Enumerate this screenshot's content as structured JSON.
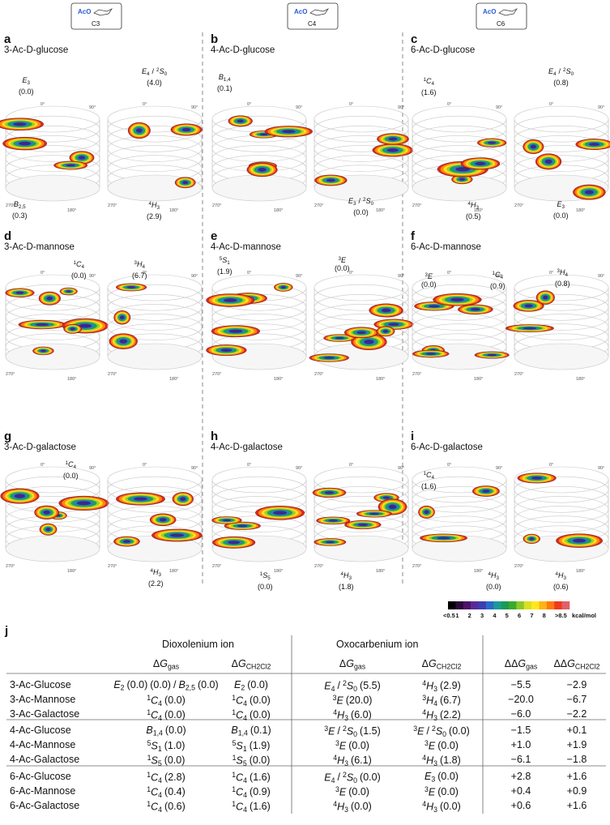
{
  "header": {
    "boxes": [
      {
        "group": "AcO",
        "label": "C3"
      },
      {
        "group": "AcO",
        "label": "C4"
      },
      {
        "group": "AcO",
        "label": "C6"
      }
    ]
  },
  "angles": [
    "0°",
    "90°",
    "180°",
    "270°"
  ],
  "panels": [
    {
      "letter": "a",
      "title": "3-Ac-D-glucose",
      "labels": [
        [
          {
            "c": "E",
            "sub": "3",
            "e": "(0.0)"
          }
        ],
        [
          {
            "c": "B",
            "sub": "2,5",
            "e": "(0.3)"
          }
        ],
        [
          {
            "c": "E",
            "sub": "4",
            "sep": "/"
          },
          {
            "sup": "2",
            "c": "S",
            "sub": "0",
            "e": "(4.0)"
          }
        ],
        [
          {
            "sup": "4",
            "c": "H",
            "sub": "3",
            "e": "(2.9)"
          }
        ]
      ]
    },
    {
      "letter": "b",
      "title": "4-Ac-D-glucose",
      "labels": [
        [
          {
            "c": "B",
            "sub": "1,4",
            "e": "(0.1)"
          }
        ],
        [
          {
            "c": "E",
            "sub": "3",
            "sep": "/"
          },
          {
            "sup": "2",
            "c": "S",
            "sub": "0",
            "e": "(0.0)"
          }
        ]
      ]
    },
    {
      "letter": "c",
      "title": "6-Ac-D-glucose",
      "labels": [
        [
          {
            "sup": "1",
            "c": "C",
            "sub": "4",
            "e": "(1.6)"
          }
        ],
        [
          {
            "c": "E",
            "sub": "4",
            "sep": "/"
          },
          {
            "sup": "2",
            "c": "S",
            "sub": "0",
            "e": "(0.8)"
          }
        ],
        [
          {
            "sup": "4",
            "c": "H",
            "sub": "3",
            "e": "(0.5)"
          }
        ],
        [
          {
            "c": "E",
            "sub": "3",
            "e": "(0.0)"
          }
        ]
      ]
    },
    {
      "letter": "d",
      "title": "3-Ac-D-mannose",
      "labels": [
        [
          {
            "sup": "1",
            "c": "C",
            "sub": "4",
            "e": "(0.0)"
          }
        ],
        [
          {
            "sup": "3",
            "c": "H",
            "sub": "4",
            "e": "(6.7)"
          }
        ]
      ]
    },
    {
      "letter": "e",
      "title": "4-Ac-D-mannose",
      "labels": [
        [
          {
            "sup": "5",
            "c": "S",
            "sub": "1",
            "e": "(1.9)"
          }
        ],
        [
          {
            "sup": "3",
            "c": "E",
            "e": "(0.0)"
          }
        ]
      ]
    },
    {
      "letter": "f",
      "title": "6-Ac-D-mannose",
      "labels": [
        [
          {
            "sup": "3",
            "c": "E",
            "e": "(0.0)"
          }
        ],
        [
          {
            "sup": "1",
            "c": "C",
            "sub": "4",
            "e": "(0.9)"
          }
        ],
        [
          {
            "sup": "3",
            "c": "H",
            "sub": "4",
            "e": "(0.8)"
          }
        ]
      ]
    },
    {
      "letter": "g",
      "title": "3-Ac-D-galactose",
      "labels": [
        [
          {
            "sup": "1",
            "c": "C",
            "sub": "4",
            "e": "(0.0)"
          }
        ],
        [
          {
            "sup": "4",
            "c": "H",
            "sub": "3",
            "e": "(2.2)"
          }
        ]
      ]
    },
    {
      "letter": "h",
      "title": "4-Ac-D-galactose",
      "labels": [
        [
          {
            "sup": "1",
            "c": "S",
            "sub": "5",
            "e": "(0.0)"
          }
        ],
        [
          {
            "sup": "4",
            "c": "H",
            "sub": "3",
            "e": "(1.8)"
          }
        ]
      ]
    },
    {
      "letter": "i",
      "title": "6-Ac-D-galactose",
      "labels": [
        [
          {
            "sup": "1",
            "c": "C",
            "sub": "4",
            "e": "(1.6)"
          }
        ],
        [
          {
            "sup": "4",
            "c": "H",
            "sub": "3",
            "e": "(0.0)"
          }
        ],
        [
          {
            "sup": "4",
            "c": "H",
            "sub": "3",
            "e": "(0.6)"
          }
        ]
      ]
    }
  ],
  "colorbar": {
    "colors": [
      "#000000",
      "#2a0a3a",
      "#4b1466",
      "#5a2a9a",
      "#3b3fb0",
      "#2a6ac8",
      "#1a9a9a",
      "#1a9a55",
      "#3aaa2a",
      "#8ac82a",
      "#d8e020",
      "#ffe81a",
      "#ffb414",
      "#ff7a10",
      "#f03a1a",
      "#e0606a"
    ],
    "labels": [
      "<0.5",
      "1",
      "2",
      "3",
      "4",
      "5",
      "6",
      "7",
      "8",
      ">8.5"
    ],
    "unit": "kcal/mol"
  },
  "table": {
    "letter": "j",
    "groups": [
      "Dioxolenium ion",
      "Oxocarbenium ion"
    ],
    "columns": [
      {
        "pre": "Δ",
        "c": "G",
        "sub": "gas"
      },
      {
        "pre": "Δ",
        "c": "G",
        "sub": "CH2Cl2"
      },
      {
        "pre": "Δ",
        "c": "G",
        "sub": "gas"
      },
      {
        "pre": "Δ",
        "c": "G",
        "sub": "CH2Cl2"
      },
      {
        "pre": "ΔΔ",
        "c": "G",
        "sub": "gas"
      },
      {
        "pre": "ΔΔ",
        "c": "G",
        "sub": "CH2Cl2"
      }
    ],
    "rows": [
      {
        "label": "3-Ac-Glucose",
        "cells": [
          [
            {
              "c": "E",
              "sub": "2",
              "e": "(0.0)",
              "sep": "/"
            },
            {
              "c": "B",
              "sub": "2,5",
              "e": "(0.0)"
            }
          ],
          [
            {
              "c": "E",
              "sub": "2",
              "e": "(0.0)"
            }
          ],
          [
            {
              "c": "E",
              "sub": "4",
              "sep": "/"
            },
            {
              "sup": "2",
              "c": "S",
              "sub": "0",
              "e": "(5.5)"
            }
          ],
          [
            {
              "sup": "4",
              "c": "H",
              "sub": "3",
              "e": "(2.9)"
            }
          ],
          "−5.5",
          "−2.9"
        ]
      },
      {
        "label": "3-Ac-Mannose",
        "cells": [
          [
            {
              "sup": "1",
              "c": "C",
              "sub": "4",
              "e": "(0.0)"
            }
          ],
          [
            {
              "sup": "1",
              "c": "C",
              "sub": "4",
              "e": "(0.0)"
            }
          ],
          [
            {
              "sup": "3",
              "c": "E",
              "e": "(20.0)"
            }
          ],
          [
            {
              "sup": "3",
              "c": "H",
              "sub": "4",
              "e": "(6.7)"
            }
          ],
          "−20.0",
          "−6.7"
        ]
      },
      {
        "label": "3-Ac-Galactose",
        "cells": [
          [
            {
              "sup": "1",
              "c": "C",
              "sub": "4",
              "e": "(0.0)"
            }
          ],
          [
            {
              "sup": "1",
              "c": "C",
              "sub": "4",
              "e": "(0.0)"
            }
          ],
          [
            {
              "sup": "4",
              "c": "H",
              "sub": "3",
              "e": "(6.0)"
            }
          ],
          [
            {
              "sup": "4",
              "c": "H",
              "sub": "3",
              "e": "(2.2)"
            }
          ],
          "−6.0",
          "−2.2"
        ]
      },
      {
        "label": "4-Ac-Glucose",
        "cells": [
          [
            {
              "c": "B",
              "sub": "1,4",
              "e": "(0.0)"
            }
          ],
          [
            {
              "c": "B",
              "sub": "1,4",
              "e": "(0.1)"
            }
          ],
          [
            {
              "sup": "3",
              "c": "E",
              "sep": "/"
            },
            {
              "sup": "2",
              "c": "S",
              "sub": "0",
              "e": "(1.5)"
            }
          ],
          [
            {
              "sup": "3",
              "c": "E",
              "sep": "/"
            },
            {
              "sup": "2",
              "c": "S",
              "sub": "0",
              "e": "(0.0)"
            }
          ],
          "−1.5",
          "+0.1"
        ]
      },
      {
        "label": "4-Ac-Mannose",
        "cells": [
          [
            {
              "sup": "5",
              "c": "S",
              "sub": "1",
              "e": "(1.0)"
            }
          ],
          [
            {
              "sup": "5",
              "c": "S",
              "sub": "1",
              "e": "(1.9)"
            }
          ],
          [
            {
              "sup": "3",
              "c": "E",
              "e": "(0.0)"
            }
          ],
          [
            {
              "sup": "3",
              "c": "E",
              "e": "(0.0)"
            }
          ],
          "+1.0",
          "+1.9"
        ]
      },
      {
        "label": "4-Ac-Galactose",
        "cells": [
          [
            {
              "sup": "1",
              "c": "S",
              "sub": "5",
              "e": "(0.0)"
            }
          ],
          [
            {
              "sup": "1",
              "c": "S",
              "sub": "5",
              "e": "(0.0)"
            }
          ],
          [
            {
              "sup": "4",
              "c": "H",
              "sub": "3",
              "e": "(6.1)"
            }
          ],
          [
            {
              "sup": "4",
              "c": "H",
              "sub": "3",
              "e": "(1.8)"
            }
          ],
          "−6.1",
          "−1.8"
        ]
      },
      {
        "label": "6-Ac-Glucose",
        "cells": [
          [
            {
              "sup": "1",
              "c": "C",
              "sub": "4",
              "e": "(2.8)"
            }
          ],
          [
            {
              "sup": "1",
              "c": "C",
              "sub": "4",
              "e": "(1.6)"
            }
          ],
          [
            {
              "c": "E",
              "sub": "4",
              "sep": "/"
            },
            {
              "sup": "2",
              "c": "S",
              "sub": "0",
              "e": "(0.0)"
            }
          ],
          [
            {
              "c": "E",
              "sub": "3",
              "e": "(0.0)"
            }
          ],
          "+2.8",
          "+1.6"
        ]
      },
      {
        "label": "6-Ac-Mannose",
        "cells": [
          [
            {
              "sup": "1",
              "c": "C",
              "sub": "4",
              "e": "(0.4)"
            }
          ],
          [
            {
              "sup": "1",
              "c": "C",
              "sub": "4",
              "e": "(0.9)"
            }
          ],
          [
            {
              "sup": "3",
              "c": "E",
              "e": "(0.0)"
            }
          ],
          [
            {
              "sup": "3",
              "c": "E",
              "e": "(0.0)"
            }
          ],
          "+0.4",
          "+0.9"
        ]
      },
      {
        "label": "6-Ac-Galactose",
        "cells": [
          [
            {
              "sup": "1",
              "c": "C",
              "sub": "4",
              "e": "(0.6)"
            }
          ],
          [
            {
              "sup": "1",
              "c": "C",
              "sub": "4",
              "e": "(1.6)"
            }
          ],
          [
            {
              "sup": "4",
              "c": "H",
              "sub": "3",
              "e": "(0.0)"
            }
          ],
          [
            {
              "sup": "4",
              "c": "H",
              "sub": "3",
              "e": "(0.0)"
            }
          ],
          "+0.6",
          "+1.6"
        ]
      }
    ]
  }
}
